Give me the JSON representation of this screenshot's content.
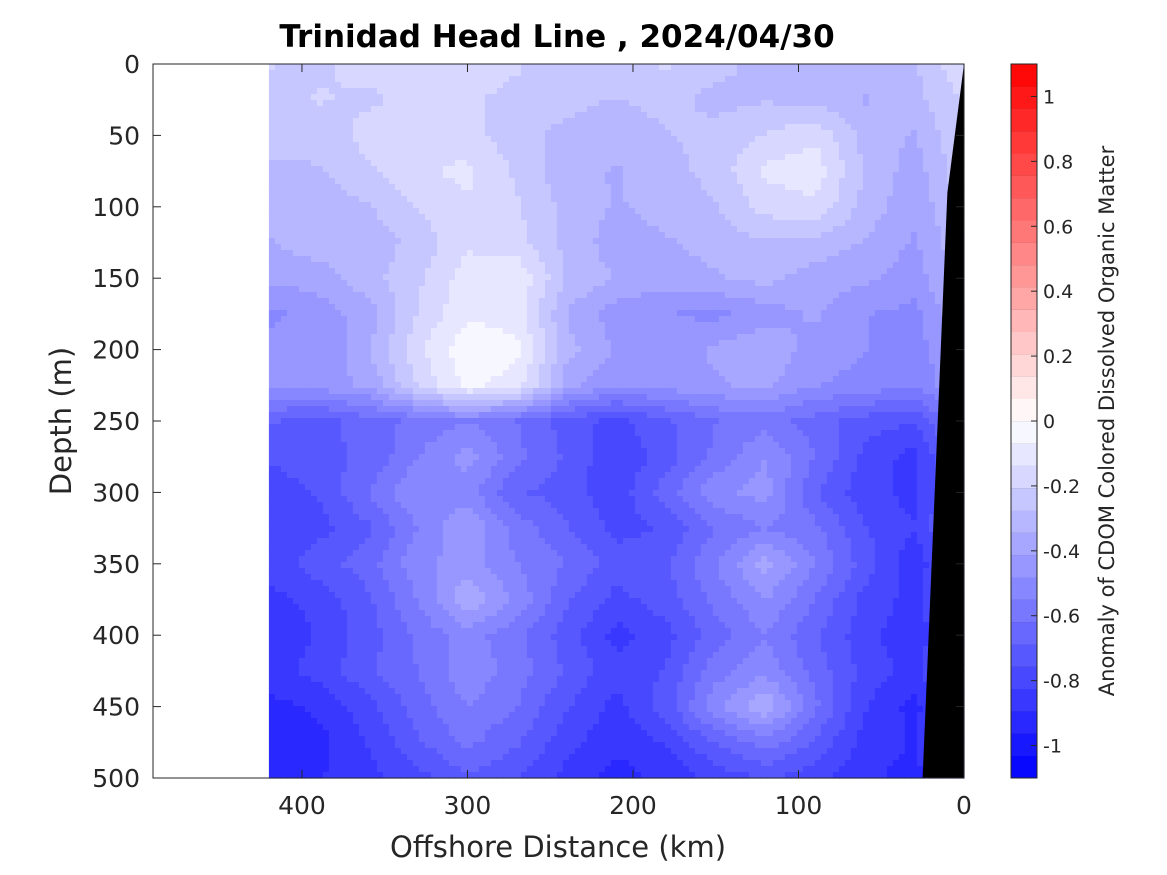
{
  "chart_data": {
    "type": "heatmap",
    "title": "Trinidad Head Line , 2024/04/30",
    "xlabel": "Offshore Distance (km)",
    "ylabel": "Depth (m)",
    "colorbar_label": "Anomaly of CDOM Colored Dissolved Organic Matter",
    "x_axis": {
      "range": [
        490,
        0
      ],
      "reversed": true,
      "ticks": [
        400,
        300,
        200,
        100,
        0
      ]
    },
    "y_axis": {
      "range": [
        0,
        500
      ],
      "reversed": true,
      "ticks": [
        0,
        50,
        100,
        150,
        200,
        250,
        300,
        350,
        400,
        450,
        500
      ]
    },
    "color_scale": {
      "range": [
        -1.1,
        1.1
      ],
      "ticks": [
        1,
        0.8,
        0.6,
        0.4,
        0.2,
        0,
        -0.2,
        -0.4,
        -0.6,
        -0.8,
        -1
      ],
      "levels": 32,
      "low_color": "#0000ff",
      "mid_color": "#ffffff",
      "high_color": "#ff0000"
    },
    "data_extent_km": [
      0,
      420
    ],
    "bathymetry": {
      "color": "#000000",
      "bottom_profile": [
        [
          0,
          0
        ],
        [
          10,
          90
        ],
        [
          25,
          500
        ]
      ]
    },
    "grid_x_km": [
      420,
      390,
      360,
      330,
      300,
      270,
      240,
      210,
      180,
      150,
      120,
      90,
      60,
      30,
      0
    ],
    "grid_depth_m": [
      0,
      25,
      50,
      75,
      100,
      125,
      150,
      175,
      200,
      225,
      250,
      275,
      300,
      325,
      350,
      375,
      400,
      425,
      450,
      475,
      500
    ],
    "values": [
      [
        -0.2,
        -0.22,
        -0.18,
        -0.2,
        -0.18,
        -0.2,
        -0.25,
        -0.22,
        -0.2,
        -0.25,
        -0.3,
        -0.32,
        -0.3,
        -0.28,
        -0.15
      ],
      [
        -0.25,
        -0.2,
        -0.22,
        -0.18,
        -0.2,
        -0.22,
        -0.25,
        -0.28,
        -0.25,
        -0.3,
        -0.28,
        -0.3,
        -0.35,
        -0.3,
        -0.2
      ],
      [
        -0.22,
        -0.25,
        -0.18,
        -0.15,
        -0.18,
        -0.25,
        -0.3,
        -0.32,
        -0.28,
        -0.25,
        -0.2,
        -0.15,
        -0.3,
        -0.35,
        -0.2
      ],
      [
        -0.3,
        -0.28,
        -0.22,
        -0.15,
        -0.12,
        -0.22,
        -0.32,
        -0.35,
        -0.3,
        -0.25,
        -0.12,
        -0.1,
        -0.28,
        -0.38,
        -0.22
      ],
      [
        -0.28,
        -0.32,
        -0.28,
        -0.2,
        -0.15,
        -0.2,
        -0.3,
        -0.35,
        -0.32,
        -0.28,
        -0.18,
        -0.15,
        -0.3,
        -0.4,
        -0.25
      ],
      [
        -0.35,
        -0.3,
        -0.32,
        -0.25,
        -0.15,
        -0.18,
        -0.3,
        -0.38,
        -0.35,
        -0.32,
        -0.28,
        -0.3,
        -0.35,
        -0.42,
        -0.28
      ],
      [
        -0.4,
        -0.38,
        -0.3,
        -0.22,
        -0.1,
        -0.08,
        -0.28,
        -0.35,
        -0.38,
        -0.35,
        -0.32,
        -0.38,
        -0.4,
        -0.45,
        -0.3
      ],
      [
        -0.5,
        -0.45,
        -0.38,
        -0.2,
        -0.08,
        -0.1,
        -0.35,
        -0.45,
        -0.48,
        -0.5,
        -0.45,
        -0.4,
        -0.48,
        -0.5,
        -0.35
      ],
      [
        -0.45,
        -0.48,
        -0.35,
        -0.15,
        -0.02,
        -0.05,
        -0.32,
        -0.42,
        -0.45,
        -0.4,
        -0.35,
        -0.45,
        -0.48,
        -0.52,
        -0.38
      ],
      [
        -0.48,
        -0.45,
        -0.4,
        -0.2,
        -0.05,
        -0.1,
        -0.38,
        -0.48,
        -0.45,
        -0.42,
        -0.4,
        -0.48,
        -0.5,
        -0.55,
        -0.4
      ],
      [
        -0.68,
        -0.72,
        -0.65,
        -0.6,
        -0.55,
        -0.62,
        -0.72,
        -0.78,
        -0.7,
        -0.62,
        -0.58,
        -0.65,
        -0.72,
        -0.75,
        -0.55
      ],
      [
        -0.75,
        -0.7,
        -0.68,
        -0.55,
        -0.45,
        -0.6,
        -0.7,
        -0.82,
        -0.72,
        -0.6,
        -0.48,
        -0.62,
        -0.78,
        -0.85,
        -0.6
      ],
      [
        -0.8,
        -0.75,
        -0.62,
        -0.48,
        -0.52,
        -0.68,
        -0.72,
        -0.8,
        -0.65,
        -0.5,
        -0.45,
        -0.68,
        -0.8,
        -0.85,
        -0.62
      ],
      [
        -0.82,
        -0.78,
        -0.7,
        -0.55,
        -0.42,
        -0.58,
        -0.68,
        -0.78,
        -0.75,
        -0.62,
        -0.55,
        -0.6,
        -0.75,
        -0.82,
        -0.62
      ],
      [
        -0.8,
        -0.72,
        -0.65,
        -0.5,
        -0.45,
        -0.55,
        -0.62,
        -0.72,
        -0.7,
        -0.55,
        -0.38,
        -0.55,
        -0.72,
        -0.88,
        -0.65
      ],
      [
        -0.85,
        -0.8,
        -0.7,
        -0.55,
        -0.35,
        -0.5,
        -0.68,
        -0.78,
        -0.72,
        -0.6,
        -0.48,
        -0.62,
        -0.78,
        -0.85,
        -0.65
      ],
      [
        -0.88,
        -0.82,
        -0.72,
        -0.6,
        -0.52,
        -0.6,
        -0.72,
        -0.85,
        -0.78,
        -0.65,
        -0.55,
        -0.68,
        -0.8,
        -0.88,
        -0.68
      ],
      [
        -0.85,
        -0.8,
        -0.7,
        -0.62,
        -0.5,
        -0.58,
        -0.7,
        -0.8,
        -0.75,
        -0.58,
        -0.5,
        -0.65,
        -0.78,
        -0.85,
        -0.68
      ],
      [
        -0.92,
        -0.88,
        -0.78,
        -0.65,
        -0.55,
        -0.62,
        -0.75,
        -0.85,
        -0.72,
        -0.5,
        -0.35,
        -0.6,
        -0.82,
        -0.92,
        -0.7
      ],
      [
        -0.9,
        -0.92,
        -0.82,
        -0.7,
        -0.6,
        -0.68,
        -0.8,
        -0.88,
        -0.82,
        -0.68,
        -0.58,
        -0.7,
        -0.85,
        -0.9,
        -0.72
      ],
      [
        -0.95,
        -0.9,
        -0.85,
        -0.78,
        -0.7,
        -0.75,
        -0.85,
        -0.92,
        -0.88,
        -0.8,
        -0.75,
        -0.8,
        -0.88,
        -0.92,
        -0.75
      ]
    ]
  }
}
